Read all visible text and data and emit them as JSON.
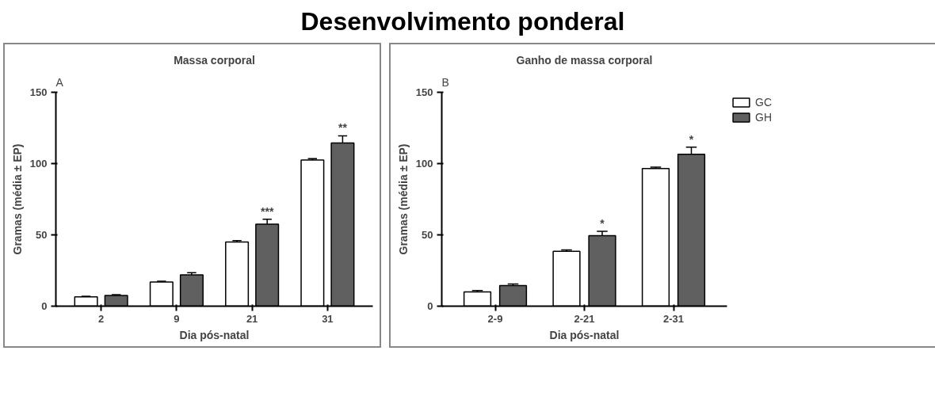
{
  "chart_data": [
    {
      "type": "bar",
      "title": "Desenvolvimento ponderal",
      "subtitle": "Massa corporal",
      "xlabel": "Dia pós-natal",
      "ylabel": "Gramas (média ± EP)",
      "categories": [
        "2",
        "9",
        "21",
        "31"
      ],
      "series": [
        {
          "color": "#ffffff",
          "values": [
            6.5,
            17,
            45,
            102.5
          ],
          "errors": [
            [
              6.5,
              7
            ],
            [
              17,
              17.5
            ],
            [
              45,
              46
            ],
            [
              102.5,
              103.5
            ]
          ]
        },
        {
          "color": "#606060",
          "values": [
            7.5,
            22,
            57.5,
            114.5
          ],
          "errors": [
            [
              7.5,
              8
            ],
            [
              22,
              23.5
            ],
            [
              57.5,
              61
            ],
            [
              114.5,
              119.5
            ]
          ],
          "value_labels": [
            null,
            null,
            "***",
            "**"
          ]
        }
      ],
      "ylim": [
        0,
        150
      ],
      "yticks": [
        0,
        50,
        100,
        150
      ],
      "grid": false,
      "legend": false,
      "annotations": [
        "A"
      ]
    },
    {
      "type": "bar",
      "title": "Ganho de massa corporal",
      "xlabel": "Dia pós-natal",
      "ylabel": "Gramas (média ± EP)",
      "categories": [
        "2-9",
        "2-21",
        "2-31"
      ],
      "series": [
        {
          "name": "GC",
          "color": "#ffffff",
          "values": [
            10,
            38.5,
            96.5
          ],
          "errors": [
            [
              10,
              11
            ],
            [
              38.5,
              39.5
            ],
            [
              96.5,
              97.5
            ]
          ]
        },
        {
          "name": "GH",
          "color": "#606060",
          "values": [
            14.5,
            49.5,
            106.5
          ],
          "errors": [
            [
              14.5,
              15.5
            ],
            [
              49.5,
              52.5
            ],
            [
              106.5,
              111.5
            ]
          ],
          "value_labels": [
            null,
            "*",
            "*"
          ]
        }
      ],
      "ylim": [
        0,
        150
      ],
      "yticks": [
        0,
        50,
        100,
        150
      ],
      "grid": false,
      "legend": "right",
      "annotations": [
        "B"
      ]
    }
  ]
}
